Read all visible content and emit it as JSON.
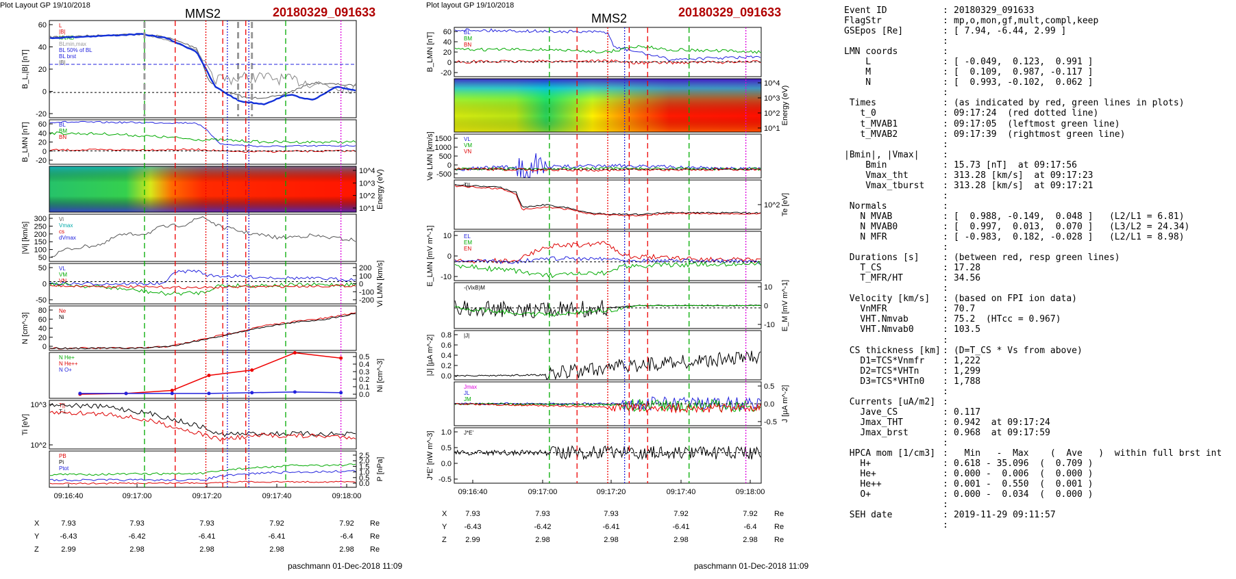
{
  "left_plot": {
    "header": "Plot Layout GP 19/10/2018",
    "title": "MMS2",
    "event": "20180329_091633",
    "footer": "paschmann 01-Dec-2018 11:09",
    "time_ticks": [
      "09:16:40",
      "09:17:00",
      "09:17:20",
      "09:17:40",
      "09:18:00"
    ],
    "pos_rows": [
      {
        "label": "X",
        "values": [
          "7.93",
          "7.93",
          "7.93",
          "7.92",
          "7.92"
        ],
        "unit": "Re"
      },
      {
        "label": "Y",
        "values": [
          "-6.43",
          "-6.42",
          "-6.41",
          "-6.41",
          "-6.4"
        ],
        "unit": "Re"
      },
      {
        "label": "Z",
        "values": [
          "2.99",
          "2.98",
          "2.98",
          "2.98",
          "2.98"
        ],
        "unit": "Re"
      }
    ]
  },
  "right_plot": {
    "header": "Plot layout GP 19/10/2018",
    "title": "MMS2",
    "event": "20180329_091633",
    "footer": "paschmann 01-Dec-2018 11:09",
    "time_ticks": [
      "09:16:40",
      "09:17:00",
      "09:17:20",
      "09:17:40",
      "09:18:00"
    ],
    "pos_rows": [
      {
        "label": "X",
        "values": [
          "7.93",
          "7.93",
          "7.93",
          "7.92",
          "7.92"
        ],
        "unit": "Re"
      },
      {
        "label": "Y",
        "values": [
          "-6.43",
          "-6.42",
          "-6.41",
          "-6.41",
          "-6.4"
        ],
        "unit": "Re"
      },
      {
        "label": "Z",
        "values": [
          "2.99",
          "2.98",
          "2.98",
          "2.98",
          "2.98"
        ],
        "unit": "Re"
      }
    ]
  },
  "chart_data": [
    {
      "type": "line",
      "panels": [
        {
          "ylabel": "B_L,|B| [nT]",
          "yticks_left": [
            "60",
            "40",
            "20",
            "0",
            "-20"
          ],
          "legend": [
            "L",
            "|B|",
            "MVAB",
            "BLmin,max",
            "BL 50% of BL",
            "BL brst",
            "|B|"
          ]
        },
        {
          "ylabel": "B_LMN [nT]",
          "yticks_left": [
            "60",
            "40",
            "20",
            "0",
            "-20"
          ],
          "legend": [
            "BL",
            "BM",
            "BN"
          ]
        },
        {
          "ylabel": "Energy (eV)",
          "yticks_right": [
            "10^4",
            "10^3",
            "10^2",
            "10^1"
          ],
          "spectrogram": true
        },
        {
          "ylabel": "|Vi| [km/s]",
          "yticks_left": [
            "300",
            "250",
            "200",
            "150",
            "100",
            "50"
          ],
          "legend": [
            "Vi",
            "Vmax",
            "cs",
            "dVmax"
          ]
        },
        {
          "ylabel": "Vi LMN [km/s]",
          "yticks_left": [
            "50",
            "0",
            "-50"
          ],
          "yticks_right": [
            "200",
            "100",
            "0",
            "-100",
            "-200"
          ],
          "legend": [
            "VL",
            "VM",
            "VN"
          ]
        },
        {
          "ylabel": "N [cm^-3]",
          "yticks_left": [
            "80",
            "60",
            "40",
            "20",
            "0"
          ],
          "legend": [
            "Ne",
            "Ni"
          ]
        },
        {
          "ylabel": "Ni [cm^-3]",
          "yticks_right": [
            "0.5",
            "0.4",
            "0.3",
            "0.2",
            "0.1",
            "0.0"
          ],
          "legend": [
            "N He+",
            "N He++",
            "N O+"
          ],
          "he_plus_plus": [
            0.0,
            0.01,
            0.05,
            0.25,
            0.32,
            0.55,
            0.48
          ],
          "o_plus": [
            0.01,
            0.01,
            0.01,
            0.01,
            0.02,
            0.03,
            0.02
          ]
        },
        {
          "ylabel": "Ti [eV]",
          "yticks_left": [
            "10^3",
            "10^2"
          ],
          "legend": [
            "T||",
            "T⊥"
          ]
        },
        {
          "ylabel": "P [nPa]",
          "yticks_right": [
            "2.5",
            "2.0",
            "1.5",
            "1.0",
            "0.5",
            "0.0"
          ],
          "legend": [
            "PB",
            "Pi",
            "Ptot"
          ]
        }
      ]
    },
    {
      "type": "line",
      "panels": [
        {
          "ylabel": "B_LMN [nT]",
          "yticks_left": [
            "60",
            "40",
            "20",
            "0",
            "-20"
          ],
          "legend": [
            "BL",
            "BM",
            "BN"
          ]
        },
        {
          "ylabel": "Energy (eV)",
          "yticks_right": [
            "10^4",
            "10^3",
            "10^2",
            "10^1"
          ],
          "spectrogram": true
        },
        {
          "ylabel": "Ve LMN [km/s]",
          "yticks_left": [
            "1500",
            "1000",
            "500",
            "0",
            "-500"
          ],
          "legend": [
            "VL",
            "VM",
            "VN"
          ]
        },
        {
          "ylabel": "Te [eV]",
          "yticks_right": [
            "10^2"
          ],
          "legend": [
            "T||"
          ]
        },
        {
          "ylabel": "E_LMN [mV m^-1]",
          "yticks_left": [
            "10",
            "0",
            "-10"
          ],
          "legend": [
            "EL",
            "EM",
            "EN"
          ]
        },
        {
          "ylabel": "E_M [mV m^-1]",
          "yticks_right": [
            "10",
            "0",
            "-10"
          ],
          "legend": [
            "-(VixB)M"
          ]
        },
        {
          "ylabel": "|J| [µA m^-2]",
          "yticks_left": [
            "0.8",
            "0.6",
            "0.4",
            "0.2",
            "0.0"
          ],
          "legend": [
            "|J|"
          ]
        },
        {
          "ylabel": "J [µA m^-2]",
          "yticks_right": [
            "0.5",
            "0.0",
            "-0.5"
          ],
          "legend": [
            "Jmax",
            "JL",
            "JM"
          ]
        },
        {
          "ylabel": "J*E' [nW m^-3]",
          "yticks_left": [
            "1.0",
            "0.5",
            "0.0",
            "-0.5"
          ],
          "legend": [
            "J*E'"
          ]
        }
      ]
    }
  ],
  "info": {
    "rows": [
      {
        "label": "Event ID",
        "value": "20180329_091633",
        "indent": 0
      },
      {
        "label": "FlagStr",
        "value": "mp,o,mon,gf,mult,compl,keep",
        "indent": 0
      },
      {
        "label": "GSEpos [Re]",
        "value": "[ 7.94, -6.44, 2.99 ]",
        "indent": 0
      },
      {
        "label": "",
        "value": "",
        "indent": 0
      },
      {
        "label": "LMN coords",
        "value": "",
        "indent": 0
      },
      {
        "label": "L",
        "value": "[ -0.049,  0.123,  0.991 ]",
        "indent": 4
      },
      {
        "label": "M",
        "value": "[  0.109,  0.987, -0.117 ]",
        "indent": 4
      },
      {
        "label": "N",
        "value": "[  0.993, -0.102,  0.062 ]",
        "indent": 4
      },
      {
        "label": "",
        "value": "",
        "indent": 0
      },
      {
        "label": "Times",
        "value": "(as indicated by red, green lines in plots)",
        "indent": 1
      },
      {
        "label": "t_0",
        "value": "09:17:24  (red dotted line)",
        "indent": 3
      },
      {
        "label": "t_MVAB1",
        "value": "09:17:05  (leftmost green line)",
        "indent": 3
      },
      {
        "label": "t_MVAB2",
        "value": "09:17:39  (rightmost green line)",
        "indent": 3
      },
      {
        "label": "",
        "value": "",
        "indent": 0
      },
      {
        "label": "|Bmin|, |Vmax|",
        "value": "",
        "indent": 0
      },
      {
        "label": "Bmin",
        "value": "15.73 [nT]  at 09:17:56",
        "indent": 4
      },
      {
        "label": "Vmax_tht",
        "value": "313.28 [km/s]  at 09:17:23",
        "indent": 4
      },
      {
        "label": "Vmax_tburst",
        "value": "313.28 [km/s]  at 09:17:21",
        "indent": 4
      },
      {
        "label": "",
        "value": "",
        "indent": 0
      },
      {
        "label": "Normals",
        "value": "",
        "indent": 1
      },
      {
        "label": "N MVAB",
        "value": "[  0.988, -0.149,  0.048 ]   (L2/L1 = 6.81)",
        "indent": 3
      },
      {
        "label": "N MVAB0",
        "value": "[  0.997,  0.013,  0.070 ]   (L3/L2 = 24.34)",
        "indent": 3
      },
      {
        "label": "N MFR",
        "value": "[ -0.983,  0.182, -0.028 ]   (L2/L1 = 8.98)",
        "indent": 3
      },
      {
        "label": "",
        "value": "",
        "indent": 0
      },
      {
        "label": "Durations [s]",
        "value": "(between red, resp green lines)",
        "indent": 1
      },
      {
        "label": "T_CS",
        "value": "17.28",
        "indent": 3
      },
      {
        "label": "T_MFR/HT",
        "value": "34.56",
        "indent": 3
      },
      {
        "label": "",
        "value": "",
        "indent": 0
      },
      {
        "label": "Velocity [km/s]",
        "value": "(based on FPI ion data)",
        "indent": 1
      },
      {
        "label": "VnMFR",
        "value": "70.7",
        "indent": 3
      },
      {
        "label": "VHT.Nmvab",
        "value": "75.2  (HTcc = 0.967)",
        "indent": 3
      },
      {
        "label": "VHT.Nmvab0",
        "value": "103.5",
        "indent": 3
      },
      {
        "label": "",
        "value": "",
        "indent": 0
      },
      {
        "label": "CS thickness [km]",
        "value": "(D=T_CS * Vs from above)",
        "indent": 1
      },
      {
        "label": "D1=TCS*Vnmfr",
        "value": "1,222",
        "indent": 3
      },
      {
        "label": "D2=TCS*VHTn",
        "value": "1,299",
        "indent": 3
      },
      {
        "label": "D3=TCS*VHTn0",
        "value": "1,788",
        "indent": 3
      },
      {
        "label": "",
        "value": "",
        "indent": 0
      },
      {
        "label": "Currents [uA/m2]",
        "value": "",
        "indent": 1
      },
      {
        "label": "Jave_CS",
        "value": "0.117",
        "indent": 3
      },
      {
        "label": "Jmax_THT",
        "value": "0.942  at 09:17:24",
        "indent": 3
      },
      {
        "label": "Jmax_brst",
        "value": "0.968  at 09:17:59",
        "indent": 3
      },
      {
        "label": "",
        "value": "",
        "indent": 0
      },
      {
        "label": "HPCA mom [1/cm3]",
        "value": "  Min   -  Max    (  Ave   )  within full brst int",
        "indent": 1
      },
      {
        "label": "H+",
        "value": "0.618 - 35.096  (  0.709 )",
        "indent": 3
      },
      {
        "label": "He+",
        "value": "0.000 -  0.006  (  0.000 )",
        "indent": 3
      },
      {
        "label": "He++",
        "value": "0.001 -  0.550  (  0.001 )",
        "indent": 3
      },
      {
        "label": "O+",
        "value": "0.000 -  0.034  (  0.000 )",
        "indent": 3
      },
      {
        "label": "",
        "value": "",
        "indent": 0
      },
      {
        "label": "SEH date",
        "value": "2019-11-29 09:11:57",
        "indent": 1
      },
      {
        "label": "",
        "value": "",
        "indent": 0
      }
    ]
  }
}
